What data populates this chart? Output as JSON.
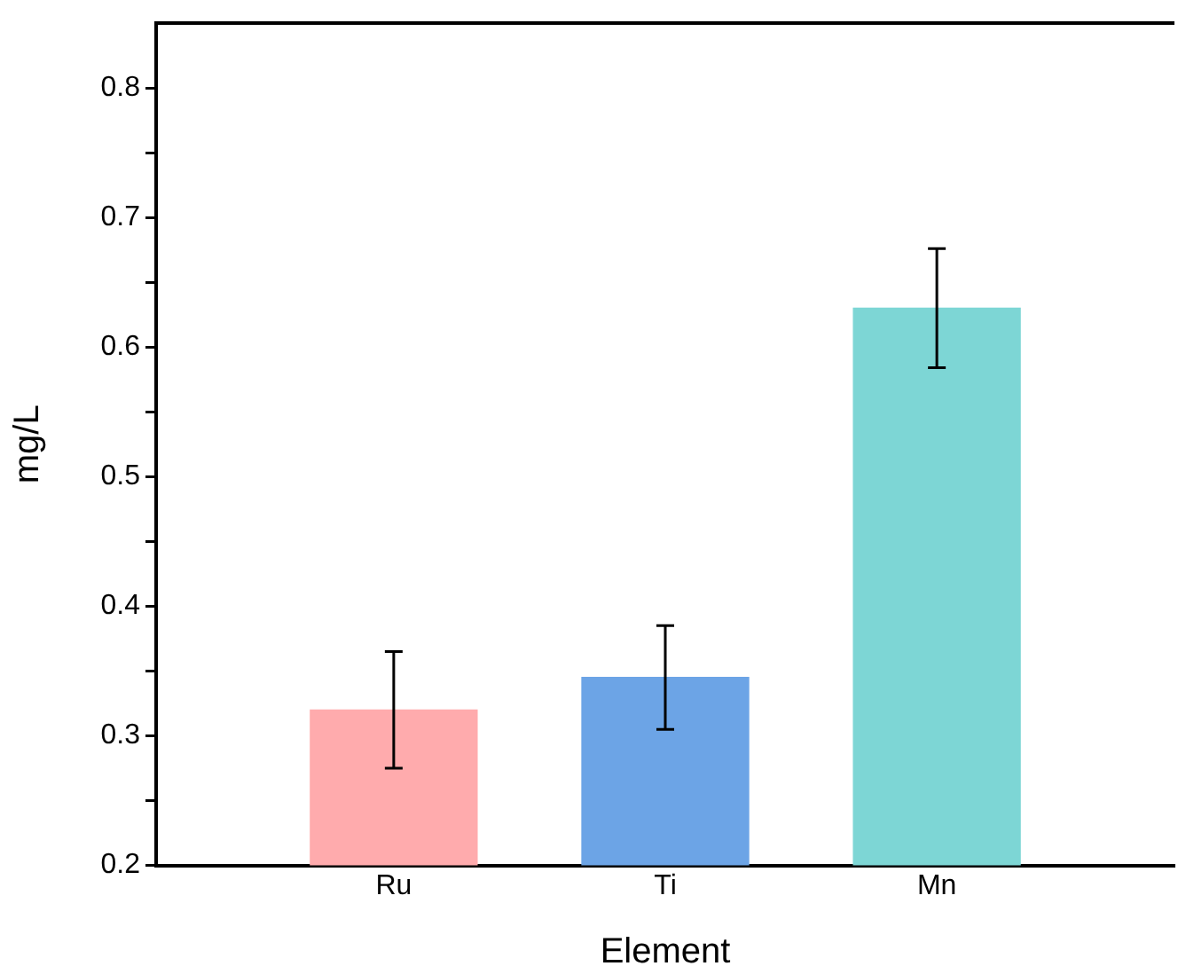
{
  "chart_data": {
    "type": "bar",
    "xlabel": "Element",
    "ylabel": "mg/L",
    "categories": [
      "Ru",
      "Ti",
      "Mn"
    ],
    "values": [
      0.32,
      0.345,
      0.63
    ],
    "errors": [
      0.045,
      0.04,
      0.046
    ],
    "colors": [
      "#ffabad",
      "#6ca4e6",
      "#7dd6d5"
    ],
    "ylim": [
      0.2,
      0.85
    ],
    "yticks": [
      0.2,
      {
        "value": 0.25,
        "label": null
      },
      0.3,
      {
        "value": 0.35,
        "label": null
      },
      0.4,
      {
        "value": 0.45,
        "label": null
      },
      0.5,
      {
        "value": 0.55,
        "label": null
      },
      0.6,
      {
        "value": 0.65,
        "label": null
      },
      0.7,
      {
        "value": 0.75,
        "label": null
      },
      0.8
    ],
    "grid": false,
    "legend": false
  }
}
